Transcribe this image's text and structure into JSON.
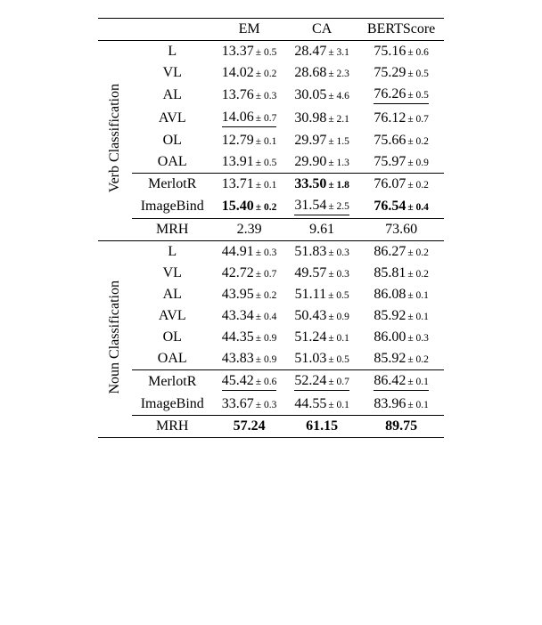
{
  "columns": [
    "EM",
    "CA",
    "BERTScore"
  ],
  "sections": [
    {
      "label": "Verb Classification",
      "groups": [
        [
          {
            "name": "L",
            "cells": [
              {
                "v": "13.37",
                "pm": "0.5"
              },
              {
                "v": "28.47",
                "pm": "3.1"
              },
              {
                "v": "75.16",
                "pm": "0.6"
              }
            ]
          },
          {
            "name": "VL",
            "cells": [
              {
                "v": "14.02",
                "pm": "0.2"
              },
              {
                "v": "28.68",
                "pm": "2.3"
              },
              {
                "v": "75.29",
                "pm": "0.5"
              }
            ]
          },
          {
            "name": "AL",
            "cells": [
              {
                "v": "13.76",
                "pm": "0.3"
              },
              {
                "v": "30.05",
                "pm": "4.6"
              },
              {
                "v": "76.26",
                "pm": "0.5",
                "ul": true
              }
            ]
          },
          {
            "name": "AVL",
            "cells": [
              {
                "v": "14.06",
                "pm": "0.7",
                "ul": true
              },
              {
                "v": "30.98",
                "pm": "2.1"
              },
              {
                "v": "76.12",
                "pm": "0.7"
              }
            ]
          },
          {
            "name": "OL",
            "cells": [
              {
                "v": "12.79",
                "pm": "0.1"
              },
              {
                "v": "29.97",
                "pm": "1.5"
              },
              {
                "v": "75.66",
                "pm": "0.2"
              }
            ]
          },
          {
            "name": "OAL",
            "cells": [
              {
                "v": "13.91",
                "pm": "0.5"
              },
              {
                "v": "29.90",
                "pm": "1.3"
              },
              {
                "v": "75.97",
                "pm": "0.9"
              }
            ]
          }
        ],
        [
          {
            "name": "MerlotR",
            "cells": [
              {
                "v": "13.71",
                "pm": "0.1"
              },
              {
                "v": "33.50",
                "pm": "1.8",
                "bold": true
              },
              {
                "v": "76.07",
                "pm": "0.2"
              }
            ]
          },
          {
            "name": "ImageBind",
            "cells": [
              {
                "v": "15.40",
                "pm": "0.2",
                "bold": true
              },
              {
                "v": "31.54",
                "pm": "2.5",
                "ul": true
              },
              {
                "v": "76.54",
                "pm": "0.4",
                "bold": true
              }
            ]
          }
        ],
        [
          {
            "name": "MRH",
            "cells": [
              {
                "v": "2.39"
              },
              {
                "v": "9.61"
              },
              {
                "v": "73.60"
              }
            ]
          }
        ]
      ]
    },
    {
      "label": "Noun Classification",
      "groups": [
        [
          {
            "name": "L",
            "cells": [
              {
                "v": "44.91",
                "pm": "0.3"
              },
              {
                "v": "51.83",
                "pm": "0.3"
              },
              {
                "v": "86.27",
                "pm": "0.2"
              }
            ]
          },
          {
            "name": "VL",
            "cells": [
              {
                "v": "42.72",
                "pm": "0.7"
              },
              {
                "v": "49.57",
                "pm": "0.3"
              },
              {
                "v": "85.81",
                "pm": "0.2"
              }
            ]
          },
          {
            "name": "AL",
            "cells": [
              {
                "v": "43.95",
                "pm": "0.2"
              },
              {
                "v": "51.11",
                "pm": "0.5"
              },
              {
                "v": "86.08",
                "pm": "0.1"
              }
            ]
          },
          {
            "name": "AVL",
            "cells": [
              {
                "v": "43.34",
                "pm": "0.4"
              },
              {
                "v": "50.43",
                "pm": "0.9"
              },
              {
                "v": "85.92",
                "pm": "0.1"
              }
            ]
          },
          {
            "name": "OL",
            "cells": [
              {
                "v": "44.35",
                "pm": "0.9"
              },
              {
                "v": "51.24",
                "pm": "0.1"
              },
              {
                "v": "86.00",
                "pm": "0.3"
              }
            ]
          },
          {
            "name": "OAL",
            "cells": [
              {
                "v": "43.83",
                "pm": "0.9"
              },
              {
                "v": "51.03",
                "pm": "0.5"
              },
              {
                "v": "85.92",
                "pm": "0.2"
              }
            ]
          }
        ],
        [
          {
            "name": "MerlotR",
            "cells": [
              {
                "v": "45.42",
                "pm": "0.6",
                "ul": true
              },
              {
                "v": "52.24",
                "pm": "0.7",
                "ul": true
              },
              {
                "v": "86.42",
                "pm": "0.1",
                "ul": true
              }
            ]
          },
          {
            "name": "ImageBind",
            "cells": [
              {
                "v": "33.67",
                "pm": "0.3"
              },
              {
                "v": "44.55",
                "pm": "0.1"
              },
              {
                "v": "83.96",
                "pm": "0.1"
              }
            ]
          }
        ],
        [
          {
            "name": "MRH",
            "cells": [
              {
                "v": "57.24",
                "plainBold": true
              },
              {
                "v": "61.15",
                "plainBold": true
              },
              {
                "v": "89.75",
                "plainBold": true
              }
            ]
          }
        ]
      ]
    }
  ]
}
